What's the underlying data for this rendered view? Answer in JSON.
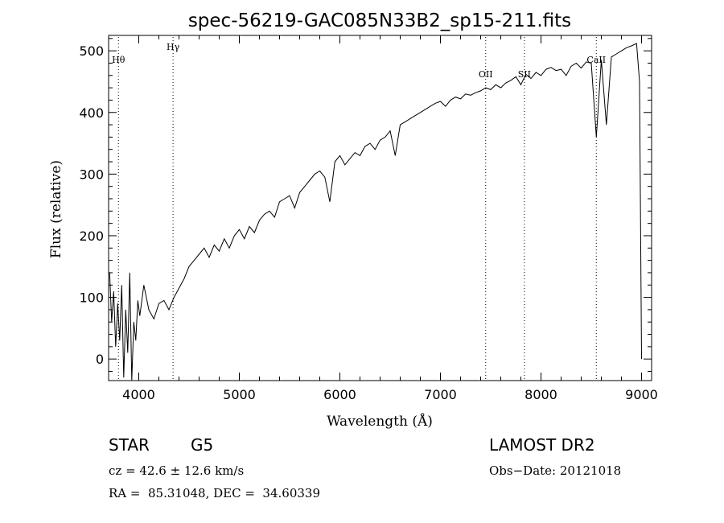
{
  "chart_data": {
    "type": "line",
    "title": "spec-56219-GAC085N33B2_sp15-211.fits",
    "xlabel": "Wavelength (Å)",
    "ylabel": "Flux (relative)",
    "xlim": [
      3700,
      9100
    ],
    "ylim": [
      -35,
      525
    ],
    "x_ticks": [
      4000,
      5000,
      6000,
      7000,
      8000,
      9000
    ],
    "y_ticks": [
      0,
      100,
      200,
      300,
      400,
      500
    ],
    "grid": false,
    "line_markers": [
      {
        "label": "Hθ",
        "x": 3798
      },
      {
        "label": "Hγ",
        "x": 4341
      },
      {
        "label": "OII",
        "x": 7450
      },
      {
        "label": "SII",
        "x": 7835
      },
      {
        "label": "CaII",
        "x": 8550
      }
    ],
    "series": [
      {
        "x": [
          3710,
          3730,
          3750,
          3770,
          3790,
          3810,
          3830,
          3850,
          3870,
          3890,
          3910,
          3930,
          3950,
          3970,
          3990,
          4010,
          4050,
          4100,
          4150,
          4200,
          4250,
          4300,
          4350,
          4400,
          4450,
          4500,
          4550,
          4600,
          4650,
          4700,
          4750,
          4800,
          4850,
          4900,
          4950,
          5000,
          5050,
          5100,
          5150,
          5200,
          5250,
          5300,
          5350,
          5400,
          5450,
          5500,
          5550,
          5600,
          5650,
          5700,
          5750,
          5800,
          5850,
          5900,
          5950,
          6000,
          6050,
          6100,
          6150,
          6200,
          6250,
          6300,
          6350,
          6400,
          6450,
          6500,
          6550,
          6600,
          6650,
          6700,
          6750,
          6800,
          6850,
          6900,
          6950,
          7000,
          7050,
          7100,
          7150,
          7200,
          7250,
          7300,
          7350,
          7400,
          7450,
          7500,
          7550,
          7600,
          7650,
          7700,
          7750,
          7800,
          7850,
          7900,
          7950,
          8000,
          8050,
          8100,
          8150,
          8200,
          8250,
          8300,
          8350,
          8400,
          8450,
          8500,
          8550,
          8600,
          8650,
          8700,
          8750,
          8800,
          8850,
          8900,
          8950,
          8980,
          9000
        ],
        "y": [
          140,
          60,
          110,
          20,
          90,
          30,
          120,
          -30,
          80,
          10,
          140,
          -35,
          60,
          30,
          95,
          70,
          120,
          80,
          65,
          90,
          95,
          80,
          100,
          115,
          130,
          150,
          160,
          170,
          180,
          165,
          185,
          175,
          195,
          180,
          200,
          210,
          195,
          215,
          205,
          225,
          235,
          240,
          230,
          255,
          260,
          265,
          245,
          270,
          280,
          290,
          300,
          305,
          295,
          255,
          320,
          330,
          315,
          325,
          335,
          330,
          345,
          350,
          340,
          355,
          360,
          370,
          330,
          380,
          385,
          390,
          395,
          400,
          405,
          410,
          415,
          418,
          410,
          420,
          425,
          422,
          430,
          428,
          432,
          435,
          440,
          437,
          445,
          440,
          448,
          452,
          458,
          445,
          462,
          455,
          465,
          460,
          470,
          473,
          468,
          470,
          460,
          475,
          480,
          472,
          482,
          480,
          360,
          485,
          380,
          490,
          495,
          500,
          505,
          508,
          512,
          450,
          0
        ]
      }
    ]
  },
  "info": {
    "class_label": "STAR",
    "subclass": "G5",
    "survey": "LAMOST DR2",
    "cz": "cz = 42.6 ± 12.6 km/s",
    "obs_date": "Obs−Date: 20121018",
    "radec": "RA =  85.31048, DEC =  34.60339"
  }
}
